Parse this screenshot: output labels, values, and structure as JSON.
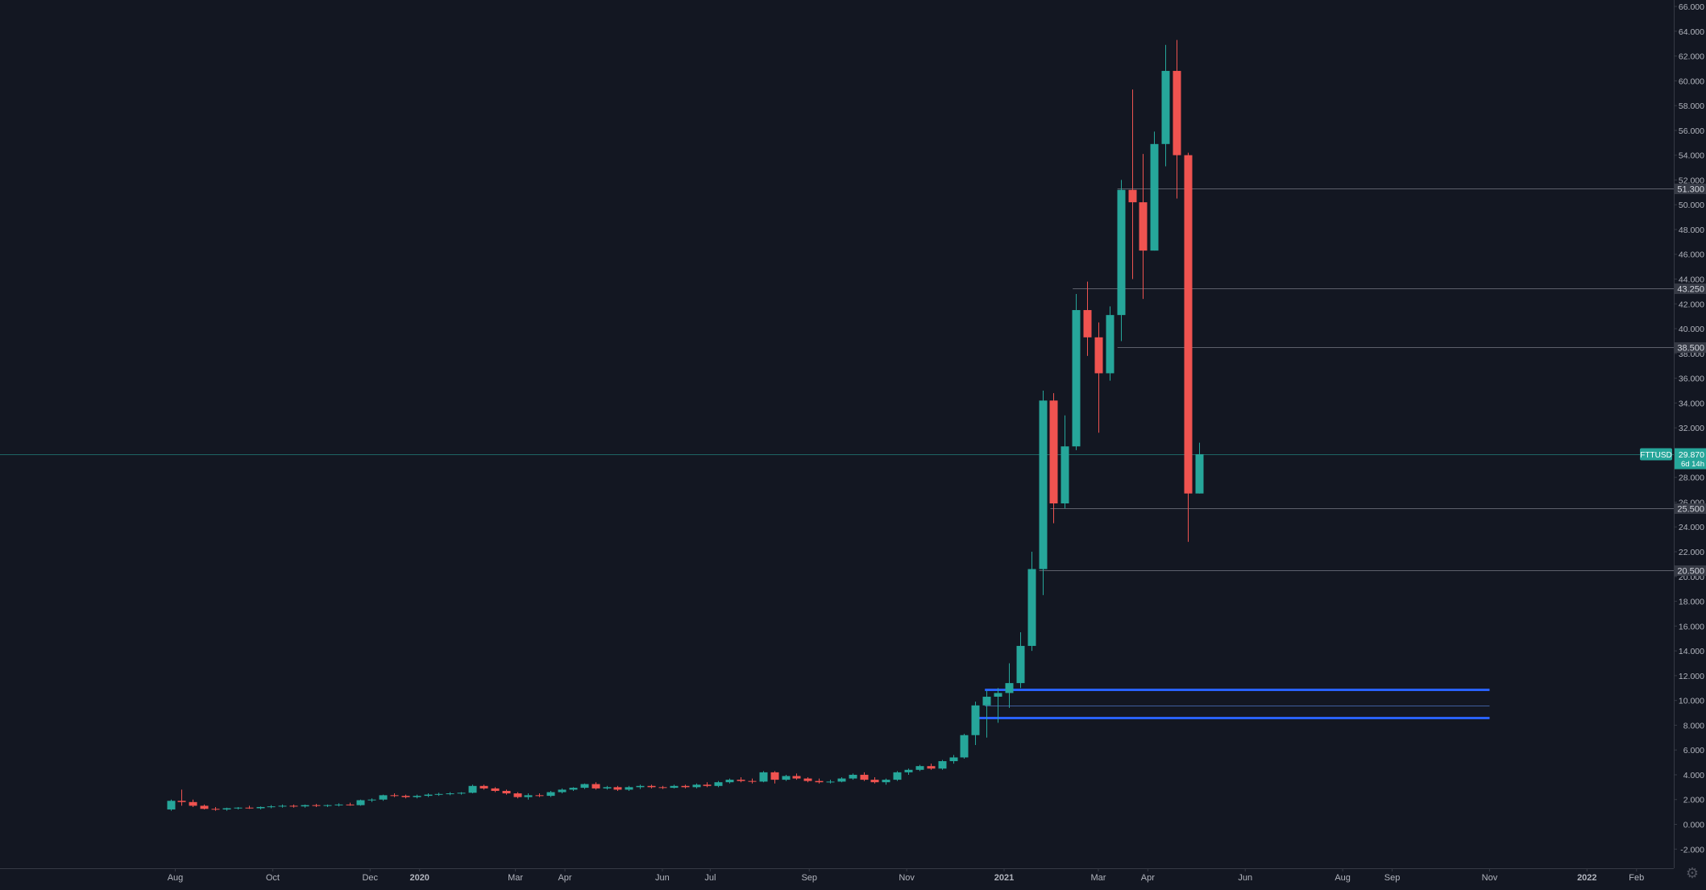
{
  "colors": {
    "background": "#131722",
    "axis_text": "#b2b5be",
    "axis_line": "#363a45",
    "up": "#26a69a",
    "down": "#ef5350",
    "level_line": "#5d606b",
    "level_label_bg": "#363a45",
    "zone_line": "#2962ff",
    "zone_mid_line": "#3f5f9e",
    "price_line": "#26a69a"
  },
  "settings_icon": "gear-icon",
  "chart_data": {
    "type": "candlestick",
    "symbol": "FTTUSD",
    "interval": "weekly",
    "last_price": "29.870",
    "countdown": "6d 14h",
    "ylim": [
      -3.2,
      66.8
    ],
    "y_ticks": [
      -2,
      0,
      2,
      4,
      6,
      8,
      10,
      12,
      14,
      16,
      18,
      20,
      22,
      24,
      26,
      28,
      30,
      32,
      34,
      36,
      38,
      40,
      42,
      44,
      46,
      48,
      50,
      52,
      54,
      56,
      58,
      60,
      62,
      64,
      66
    ],
    "y_tick_decimals": 3,
    "x_ticks": [
      {
        "label": "Aug",
        "date": "2019-08-01",
        "bold": false
      },
      {
        "label": "Oct",
        "date": "2019-10-01",
        "bold": false
      },
      {
        "label": "Dec",
        "date": "2019-12-01",
        "bold": false
      },
      {
        "label": "2020",
        "date": "2020-01-01",
        "bold": true
      },
      {
        "label": "Mar",
        "date": "2020-03-01",
        "bold": false
      },
      {
        "label": "Apr",
        "date": "2020-04-01",
        "bold": false
      },
      {
        "label": "Jun",
        "date": "2020-06-01",
        "bold": false
      },
      {
        "label": "Jul",
        "date": "2020-07-01",
        "bold": false
      },
      {
        "label": "Sep",
        "date": "2020-09-01",
        "bold": false
      },
      {
        "label": "Nov",
        "date": "2020-11-01",
        "bold": false
      },
      {
        "label": "2021",
        "date": "2021-01-01",
        "bold": true
      },
      {
        "label": "Mar",
        "date": "2021-03-01",
        "bold": false
      },
      {
        "label": "Apr",
        "date": "2021-04-01",
        "bold": false
      },
      {
        "label": "Jun",
        "date": "2021-06-01",
        "bold": false
      },
      {
        "label": "Aug",
        "date": "2021-08-01",
        "bold": false
      },
      {
        "label": "Sep",
        "date": "2021-09-01",
        "bold": false
      },
      {
        "label": "Nov",
        "date": "2021-11-01",
        "bold": false
      },
      {
        "label": "2022",
        "date": "2022-01-01",
        "bold": true
      },
      {
        "label": "Feb",
        "date": "2022-02-01",
        "bold": false
      }
    ],
    "first_candle_date": "2019-07-29",
    "candle_interval_days": 7,
    "candles": [
      [
        1.2,
        2.0,
        1.1,
        1.9
      ],
      [
        1.9,
        2.8,
        1.5,
        1.8
      ],
      [
        1.8,
        2.0,
        1.4,
        1.5
      ],
      [
        1.5,
        1.6,
        1.2,
        1.25
      ],
      [
        1.25,
        1.4,
        1.1,
        1.2
      ],
      [
        1.2,
        1.35,
        1.1,
        1.3
      ],
      [
        1.3,
        1.4,
        1.2,
        1.35
      ],
      [
        1.35,
        1.5,
        1.25,
        1.3
      ],
      [
        1.3,
        1.45,
        1.2,
        1.4
      ],
      [
        1.4,
        1.55,
        1.3,
        1.45
      ],
      [
        1.45,
        1.6,
        1.35,
        1.5
      ],
      [
        1.5,
        1.6,
        1.35,
        1.45
      ],
      [
        1.45,
        1.6,
        1.35,
        1.55
      ],
      [
        1.55,
        1.65,
        1.4,
        1.5
      ],
      [
        1.5,
        1.6,
        1.4,
        1.55
      ],
      [
        1.55,
        1.7,
        1.45,
        1.6
      ],
      [
        1.6,
        1.75,
        1.5,
        1.55
      ],
      [
        1.55,
        2.0,
        1.5,
        1.95
      ],
      [
        1.95,
        2.1,
        1.8,
        2.0
      ],
      [
        2.0,
        2.4,
        1.9,
        2.35
      ],
      [
        2.35,
        2.5,
        2.2,
        2.3
      ],
      [
        2.3,
        2.4,
        2.1,
        2.2
      ],
      [
        2.2,
        2.4,
        2.1,
        2.3
      ],
      [
        2.3,
        2.5,
        2.2,
        2.4
      ],
      [
        2.4,
        2.55,
        2.3,
        2.45
      ],
      [
        2.45,
        2.6,
        2.35,
        2.5
      ],
      [
        2.5,
        2.6,
        2.4,
        2.55
      ],
      [
        2.55,
        3.2,
        2.5,
        3.1
      ],
      [
        3.1,
        3.2,
        2.8,
        2.9
      ],
      [
        2.9,
        3.0,
        2.6,
        2.7
      ],
      [
        2.7,
        2.8,
        2.4,
        2.5
      ],
      [
        2.5,
        2.6,
        2.1,
        2.2
      ],
      [
        2.2,
        2.5,
        2.0,
        2.35
      ],
      [
        2.35,
        2.5,
        2.2,
        2.3
      ],
      [
        2.3,
        2.7,
        2.2,
        2.6
      ],
      [
        2.6,
        2.9,
        2.5,
        2.8
      ],
      [
        2.8,
        3.0,
        2.7,
        2.95
      ],
      [
        2.95,
        3.3,
        2.85,
        3.25
      ],
      [
        3.25,
        3.4,
        2.8,
        2.9
      ],
      [
        2.9,
        3.1,
        2.8,
        3.0
      ],
      [
        3.0,
        3.1,
        2.7,
        2.8
      ],
      [
        2.8,
        3.1,
        2.7,
        3.0
      ],
      [
        3.0,
        3.2,
        2.85,
        3.1
      ],
      [
        3.1,
        3.2,
        2.9,
        3.0
      ],
      [
        3.0,
        3.1,
        2.85,
        2.95
      ],
      [
        2.95,
        3.2,
        2.9,
        3.1
      ],
      [
        3.1,
        3.2,
        2.9,
        3.0
      ],
      [
        3.0,
        3.3,
        2.9,
        3.2
      ],
      [
        3.2,
        3.4,
        3.0,
        3.1
      ],
      [
        3.1,
        3.5,
        3.0,
        3.4
      ],
      [
        3.4,
        3.7,
        3.3,
        3.6
      ],
      [
        3.6,
        3.8,
        3.4,
        3.5
      ],
      [
        3.5,
        3.7,
        3.3,
        3.45
      ],
      [
        3.45,
        4.3,
        3.4,
        4.2
      ],
      [
        4.2,
        4.3,
        3.3,
        3.6
      ],
      [
        3.6,
        4.0,
        3.5,
        3.9
      ],
      [
        3.9,
        4.1,
        3.6,
        3.7
      ],
      [
        3.7,
        3.8,
        3.4,
        3.5
      ],
      [
        3.5,
        3.7,
        3.3,
        3.4
      ],
      [
        3.4,
        3.6,
        3.3,
        3.45
      ],
      [
        3.45,
        3.8,
        3.4,
        3.7
      ],
      [
        3.7,
        4.1,
        3.6,
        4.0
      ],
      [
        4.0,
        4.2,
        3.5,
        3.6
      ],
      [
        3.6,
        3.8,
        3.3,
        3.4
      ],
      [
        3.4,
        3.7,
        3.2,
        3.6
      ],
      [
        3.6,
        4.3,
        3.5,
        4.2
      ],
      [
        4.2,
        4.5,
        4.0,
        4.4
      ],
      [
        4.4,
        4.8,
        4.3,
        4.7
      ],
      [
        4.7,
        4.9,
        4.4,
        4.5
      ],
      [
        4.5,
        5.2,
        4.4,
        5.1
      ],
      [
        5.1,
        5.6,
        4.9,
        5.4
      ],
      [
        5.4,
        7.3,
        5.3,
        7.2
      ],
      [
        7.2,
        9.9,
        6.4,
        9.6
      ],
      [
        9.6,
        10.8,
        7.0,
        10.3
      ],
      [
        10.3,
        11.0,
        8.2,
        10.6
      ],
      [
        10.6,
        13.0,
        9.4,
        11.4
      ],
      [
        11.4,
        15.5,
        11.0,
        14.4
      ],
      [
        14.4,
        22.0,
        14.0,
        20.6
      ],
      [
        20.6,
        35.0,
        18.5,
        34.2
      ],
      [
        34.2,
        34.8,
        24.3,
        25.9
      ],
      [
        25.9,
        33.0,
        25.5,
        30.5
      ],
      [
        30.5,
        42.8,
        30.2,
        41.5
      ],
      [
        41.5,
        43.8,
        37.8,
        39.3
      ],
      [
        39.3,
        40.5,
        31.6,
        36.4
      ],
      [
        36.4,
        41.8,
        35.8,
        41.1
      ],
      [
        41.1,
        52.0,
        39.0,
        51.2
      ],
      [
        51.2,
        59.3,
        44.0,
        50.2
      ],
      [
        50.2,
        54.1,
        42.4,
        46.3
      ],
      [
        46.3,
        55.9,
        46.3,
        54.9
      ],
      [
        54.9,
        62.9,
        53.1,
        60.8
      ],
      [
        60.8,
        63.3,
        50.5,
        54.0
      ],
      [
        54.0,
        54.2,
        22.8,
        26.7
      ],
      [
        26.7,
        30.8,
        26.7,
        29.87
      ]
    ],
    "levels": [
      {
        "price": 51.3,
        "label": "51.300",
        "start_index": 85
      },
      {
        "price": 43.25,
        "label": "43.250",
        "start_index": 81
      },
      {
        "price": 38.5,
        "label": "38.500",
        "start_index": 85
      },
      {
        "price": 25.5,
        "label": "25.500",
        "start_index": 79
      },
      {
        "price": 20.5,
        "label": "20.500",
        "start_index": 78
      }
    ],
    "zones": [
      {
        "price": 10.9,
        "type": "bold",
        "start_index": 73,
        "end_date": "2021-11-01"
      },
      {
        "price": 9.6,
        "type": "thin",
        "start_index": 73,
        "end_date": "2021-11-01"
      },
      {
        "price": 8.6,
        "type": "bold",
        "start_index": 72,
        "end_date": "2021-11-01"
      }
    ]
  }
}
